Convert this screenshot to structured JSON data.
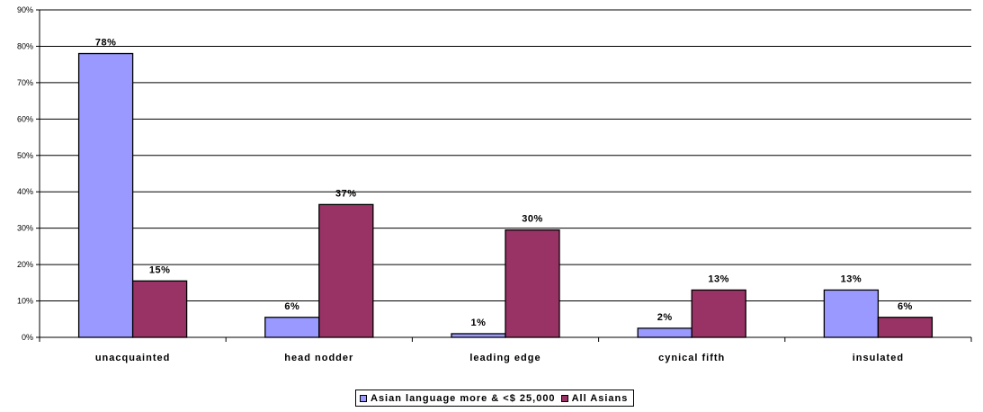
{
  "chart_data": {
    "type": "bar",
    "title": "",
    "xlabel": "",
    "ylabel": "",
    "categories": [
      "unacquainted",
      "head nodder",
      "leading edge",
      "cynical fifth",
      "insulated"
    ],
    "series": [
      {
        "name": "Asian language more & <$25,000",
        "color": "#9999ff",
        "values": [
          78,
          6,
          1,
          2,
          13
        ],
        "labels": [
          "78%",
          "6%",
          "1%",
          "2%",
          "13%"
        ],
        "drawn_values": [
          78,
          5.5,
          1,
          2.5,
          13
        ]
      },
      {
        "name": "All Asians",
        "color": "#993366",
        "values": [
          15,
          37,
          30,
          13,
          6
        ],
        "labels": [
          "15%",
          "37%",
          "30%",
          "13%",
          "6%"
        ],
        "drawn_values": [
          15.5,
          36.5,
          29.5,
          13,
          5.5
        ]
      }
    ],
    "ylim": [
      0,
      90
    ],
    "yticks": [
      0,
      10,
      20,
      30,
      40,
      50,
      60,
      70,
      80,
      90
    ],
    "ytick_labels": [
      "0%",
      "10%",
      "20%",
      "30%",
      "40%",
      "50%",
      "60%",
      "70%",
      "80%",
      "90%"
    ],
    "grid": true,
    "legend_position": "bottom-center"
  },
  "legend": {
    "items": [
      {
        "label": "Asian language more & <$ 25,000",
        "color": "#9999ff"
      },
      {
        "label": "All Asians",
        "color": "#993366"
      }
    ]
  }
}
